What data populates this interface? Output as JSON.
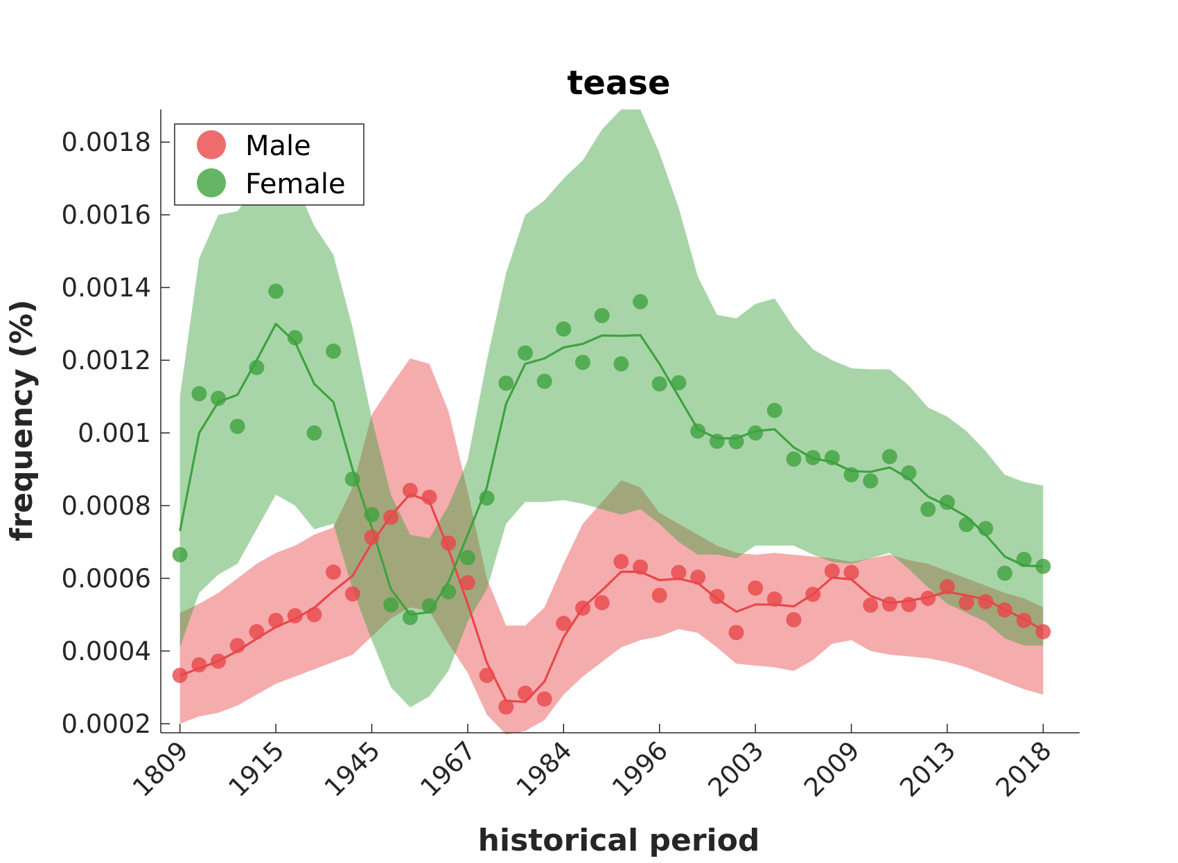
{
  "chart_data": {
    "type": "scatter",
    "title": "tease",
    "xlabel": "historical period",
    "ylabel": "frequency (%)",
    "ylim": [
      0.000175,
      0.00189
    ],
    "y_ticks": [
      "0.0002",
      "0.0004",
      "0.0006",
      "0.0008",
      "0.001",
      "0.0012",
      "0.0014",
      "0.0016",
      "0.0018"
    ],
    "x_tick_labels": [
      "1809",
      "1915",
      "1945",
      "1967",
      "1984",
      "1996",
      "2003",
      "2009",
      "2013",
      "2018"
    ],
    "x_tick_positions": [
      0,
      5,
      10,
      15,
      20,
      25,
      30,
      35,
      40,
      45
    ],
    "x_range": [
      -1,
      46.9
    ],
    "legend_position": "top-left",
    "grid": false,
    "series": [
      {
        "name": "Male",
        "color": "#e8474a",
        "points": [
          0.000333,
          0.000362,
          0.000372,
          0.000415,
          0.000453,
          0.000484,
          0.000497,
          0.0005,
          0.000617,
          0.000557,
          0.000713,
          0.000768,
          0.000842,
          0.000823,
          0.000697,
          0.000588,
          0.000333,
          0.000246,
          0.000284,
          0.000268,
          0.000476,
          0.000518,
          0.000533,
          0.000646,
          0.000631,
          0.000553,
          0.000616,
          0.000603,
          0.00055,
          0.000451,
          0.000573,
          0.000543,
          0.000486,
          0.000556,
          0.00062,
          0.000616,
          0.000526,
          0.000529,
          0.000528,
          0.000545,
          0.000577,
          0.000533,
          0.000536,
          0.000513,
          0.000484,
          0.000453
        ],
        "trend": [
          0.000333,
          0.000352,
          0.000372,
          0.0004,
          0.000434,
          0.000466,
          0.000488,
          0.000519,
          0.000565,
          0.000607,
          0.000697,
          0.000772,
          0.000832,
          0.000812,
          0.00068,
          0.00053,
          0.000368,
          0.000263,
          0.00026,
          0.000316,
          0.000438,
          0.000519,
          0.000567,
          0.000618,
          0.000618,
          0.000595,
          0.000599,
          0.000587,
          0.000544,
          0.000508,
          0.000528,
          0.000528,
          0.000523,
          0.000556,
          0.000602,
          0.000597,
          0.000552,
          0.000532,
          0.000538,
          0.000548,
          0.000563,
          0.000553,
          0.000542,
          0.000514,
          0.000488,
          0.000457
        ],
        "upper": [
          0.000505,
          0.00053,
          0.00056,
          0.0006,
          0.00064,
          0.00067,
          0.00069,
          0.00072,
          0.00074,
          0.00085,
          0.00105,
          0.00113,
          0.001205,
          0.00119,
          0.00106,
          0.00084,
          0.0006,
          0.00047,
          0.00047,
          0.00052,
          0.00064,
          0.00075,
          0.00081,
          0.00087,
          0.00085,
          0.00078,
          0.00075,
          0.00072,
          0.00069,
          0.00067,
          0.000665,
          0.00067,
          0.000665,
          0.00066,
          0.000655,
          0.000645,
          0.000655,
          0.000665,
          0.00065,
          0.00064,
          0.00062,
          0.0006,
          0.00058,
          0.00056,
          0.000545,
          0.00052
        ],
        "lower": [
          0.0002,
          0.00022,
          0.00023,
          0.00025,
          0.00028,
          0.00031,
          0.00033,
          0.00035,
          0.00037,
          0.00039,
          0.00044,
          0.00049,
          0.00052,
          0.00051,
          0.00042,
          0.00034,
          0.000225,
          0.00017,
          0.00018,
          0.00021,
          0.00028,
          0.00033,
          0.00037,
          0.00041,
          0.00043,
          0.00044,
          0.00046,
          0.00045,
          0.00041,
          0.000365,
          0.00036,
          0.000355,
          0.000345,
          0.000375,
          0.00042,
          0.00043,
          0.0004,
          0.00039,
          0.000385,
          0.00038,
          0.00037,
          0.000355,
          0.000335,
          0.000315,
          0.000295,
          0.00028
        ]
      },
      {
        "name": "Female",
        "color": "#3fa23f",
        "points": [
          0.000665,
          0.001108,
          0.001095,
          0.001018,
          0.00118,
          0.00139,
          0.001262,
          0.001,
          0.001225,
          0.000873,
          0.000775,
          0.000527,
          0.000492,
          0.000524,
          0.000563,
          0.000657,
          0.000821,
          0.001137,
          0.00122,
          0.001142,
          0.001286,
          0.001194,
          0.001323,
          0.00119,
          0.001361,
          0.001135,
          0.001138,
          0.001005,
          0.000977,
          0.000976,
          0.001,
          0.001062,
          0.000928,
          0.000932,
          0.000932,
          0.000885,
          0.000868,
          0.000935,
          0.00089,
          0.00079,
          0.000809,
          0.000748,
          0.000737,
          0.000614,
          0.000652,
          0.000633
        ],
        "trend": [
          0.00073,
          0.001,
          0.001085,
          0.001105,
          0.0012,
          0.0013,
          0.00125,
          0.001135,
          0.001085,
          0.0009,
          0.00074,
          0.00057,
          0.0005,
          0.000507,
          0.00059,
          0.00072,
          0.00085,
          0.00108,
          0.00119,
          0.001205,
          0.001235,
          0.001245,
          0.001268,
          0.001267,
          0.001269,
          0.00119,
          0.0011,
          0.00101,
          0.000985,
          0.000985,
          0.001005,
          0.00101,
          0.00096,
          0.00093,
          0.00092,
          0.000895,
          0.000893,
          0.000905,
          0.000875,
          0.000825,
          0.0008,
          0.00077,
          0.00072,
          0.00066,
          0.000635,
          0.000633
        ],
        "upper": [
          0.0011,
          0.00148,
          0.0016,
          0.00161,
          0.00168,
          0.00169,
          0.00169,
          0.00157,
          0.00149,
          0.00129,
          0.00104,
          0.00083,
          0.00072,
          0.00071,
          0.0008,
          0.000925,
          0.0012,
          0.00144,
          0.0016,
          0.00164,
          0.0017,
          0.00175,
          0.001835,
          0.00189,
          0.00189,
          0.00177,
          0.00162,
          0.00143,
          0.001325,
          0.001315,
          0.001355,
          0.00137,
          0.00129,
          0.00123,
          0.0012,
          0.001178,
          0.001175,
          0.001175,
          0.00113,
          0.00107,
          0.001045,
          0.001005,
          0.00095,
          0.000885,
          0.000865,
          0.000855
        ],
        "lower": [
          0.00041,
          0.00056,
          0.00061,
          0.00064,
          0.000735,
          0.00083,
          0.0008,
          0.000735,
          0.00075,
          0.00057,
          0.00043,
          0.0003,
          0.000245,
          0.000275,
          0.000345,
          0.00048,
          0.00057,
          0.00075,
          0.00081,
          0.00081,
          0.000815,
          0.000805,
          0.00079,
          0.000775,
          0.00079,
          0.00075,
          0.0007,
          0.000665,
          0.000665,
          0.000655,
          0.00069,
          0.00069,
          0.00069,
          0.000665,
          0.000645,
          0.00064,
          0.000655,
          0.00067,
          0.000625,
          0.000575,
          0.00053,
          0.000505,
          0.00048,
          0.000435,
          0.000415,
          0.000415
        ]
      }
    ]
  }
}
